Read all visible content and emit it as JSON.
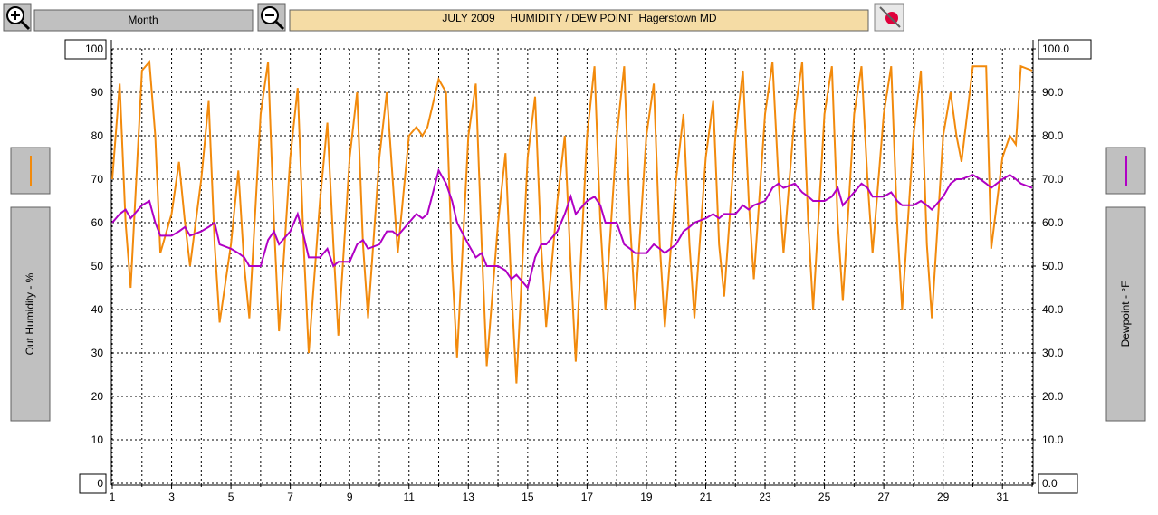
{
  "toolbar": {
    "period": "Month"
  },
  "chart_data": {
    "type": "line",
    "title": "JULY 2009     HUMIDITY / DEW POINT  Hagerstown MD",
    "y_label": "Out Humidity - %",
    "y2_label": "Dewpoint - °F",
    "xlim": [
      1,
      32
    ],
    "xticks": [
      1,
      3,
      5,
      7,
      9,
      11,
      13,
      15,
      17,
      19,
      21,
      23,
      25,
      27,
      29,
      31
    ],
    "xminor": [
      2,
      4,
      6,
      8,
      10,
      12,
      14,
      16,
      18,
      20,
      22,
      24,
      26,
      28,
      30,
      32
    ],
    "ylim": [
      0,
      100
    ],
    "yticks": [
      0,
      10,
      20,
      30,
      40,
      50,
      60,
      70,
      80,
      90,
      100
    ],
    "y2lim": [
      0,
      100
    ],
    "y2ticks": [
      {
        "value": 0,
        "label": "0.0"
      },
      {
        "value": 10,
        "label": "10.0"
      },
      {
        "value": 20,
        "label": "20.0"
      },
      {
        "value": 30,
        "label": "30.0"
      },
      {
        "value": 40,
        "label": "40.0"
      },
      {
        "value": 50,
        "label": "50.0"
      },
      {
        "value": 60,
        "label": "60.0"
      },
      {
        "value": 70,
        "label": "70.0"
      },
      {
        "value": 80,
        "label": "80.0"
      },
      {
        "value": 90,
        "label": "90.0"
      },
      {
        "value": 100,
        "label": "100.0"
      }
    ],
    "grid": true,
    "x": [
      1,
      1.25,
      1.45,
      1.62,
      2,
      2.25,
      2.45,
      2.62,
      3,
      3.25,
      3.45,
      3.62,
      4,
      4.25,
      4.45,
      4.62,
      5,
      5.25,
      5.45,
      5.62,
      6,
      6.25,
      6.45,
      6.62,
      7,
      7.25,
      7.45,
      7.62,
      8,
      8.25,
      8.45,
      8.62,
      9,
      9.25,
      9.45,
      9.62,
      10,
      10.25,
      10.45,
      10.62,
      11,
      11.25,
      11.45,
      11.62,
      12,
      12.25,
      12.45,
      12.62,
      13,
      13.25,
      13.45,
      13.62,
      14,
      14.25,
      14.45,
      14.62,
      15,
      15.25,
      15.45,
      15.62,
      16,
      16.25,
      16.45,
      16.62,
      17,
      17.25,
      17.45,
      17.62,
      18,
      18.25,
      18.45,
      18.62,
      19,
      19.25,
      19.45,
      19.62,
      20,
      20.25,
      20.45,
      20.62,
      21,
      21.25,
      21.45,
      21.62,
      22,
      22.25,
      22.45,
      22.62,
      23,
      23.25,
      23.45,
      23.62,
      24,
      24.25,
      24.45,
      24.62,
      25,
      25.25,
      25.45,
      25.62,
      26,
      26.25,
      26.45,
      26.62,
      27,
      27.25,
      27.45,
      27.62,
      28,
      28.25,
      28.45,
      28.62,
      29,
      29.25,
      29.45,
      29.62,
      30,
      30.25,
      30.45,
      30.62,
      31,
      31.25,
      31.45,
      31.62,
      32
    ],
    "series": [
      {
        "name": "Out Humidity",
        "color": "#f28a0c",
        "values": [
          70,
          92,
          60,
          45,
          95,
          97,
          80,
          53,
          62,
          74,
          60,
          50,
          70,
          88,
          55,
          37,
          55,
          72,
          50,
          38,
          85,
          97,
          60,
          35,
          75,
          91,
          55,
          30,
          65,
          83,
          55,
          34,
          75,
          90,
          55,
          38,
          75,
          90,
          70,
          53,
          80,
          82,
          80,
          82,
          93,
          90,
          50,
          29,
          80,
          92,
          55,
          27,
          60,
          76,
          45,
          23,
          75,
          89,
          55,
          36,
          65,
          80,
          50,
          28,
          80,
          96,
          60,
          40,
          80,
          96,
          60,
          40,
          80,
          92,
          55,
          36,
          70,
          85,
          55,
          38,
          75,
          88,
          55,
          43,
          80,
          95,
          65,
          47,
          85,
          97,
          70,
          53,
          85,
          97,
          60,
          40,
          85,
          96,
          60,
          42,
          85,
          96,
          70,
          53,
          85,
          96,
          60,
          40,
          80,
          95,
          55,
          38,
          80,
          90,
          80,
          74,
          96,
          96,
          96,
          54,
          75,
          80,
          78,
          96,
          95
        ]
      },
      {
        "name": "Dewpoint",
        "color": "#b000c4",
        "axis": "y2",
        "values": [
          60,
          62,
          63,
          61,
          64,
          65,
          60,
          57,
          57,
          58,
          59,
          57,
          58,
          59,
          60,
          55,
          54,
          53,
          52,
          50,
          50,
          56,
          58,
          55,
          58,
          62,
          57,
          52,
          52,
          54,
          50,
          51,
          51,
          55,
          56,
          54,
          55,
          58,
          58,
          57,
          60,
          62,
          61,
          62,
          72,
          69,
          65,
          60,
          55,
          52,
          53,
          50,
          50,
          49,
          47,
          48,
          45,
          52,
          55,
          55,
          58,
          62,
          66,
          62,
          65,
          66,
          64,
          60,
          60,
          55,
          54,
          53,
          53,
          55,
          54,
          53,
          55,
          58,
          59,
          60,
          61,
          62,
          61,
          62,
          62,
          64,
          63,
          64,
          65,
          68,
          69,
          68,
          69,
          67,
          66,
          65,
          65,
          66,
          68,
          64,
          67,
          69,
          68,
          66,
          66,
          67,
          65,
          64,
          64,
          65,
          64,
          63,
          66,
          69,
          70,
          70,
          71,
          70,
          69,
          68,
          70,
          71,
          70,
          69,
          68
        ]
      }
    ]
  }
}
